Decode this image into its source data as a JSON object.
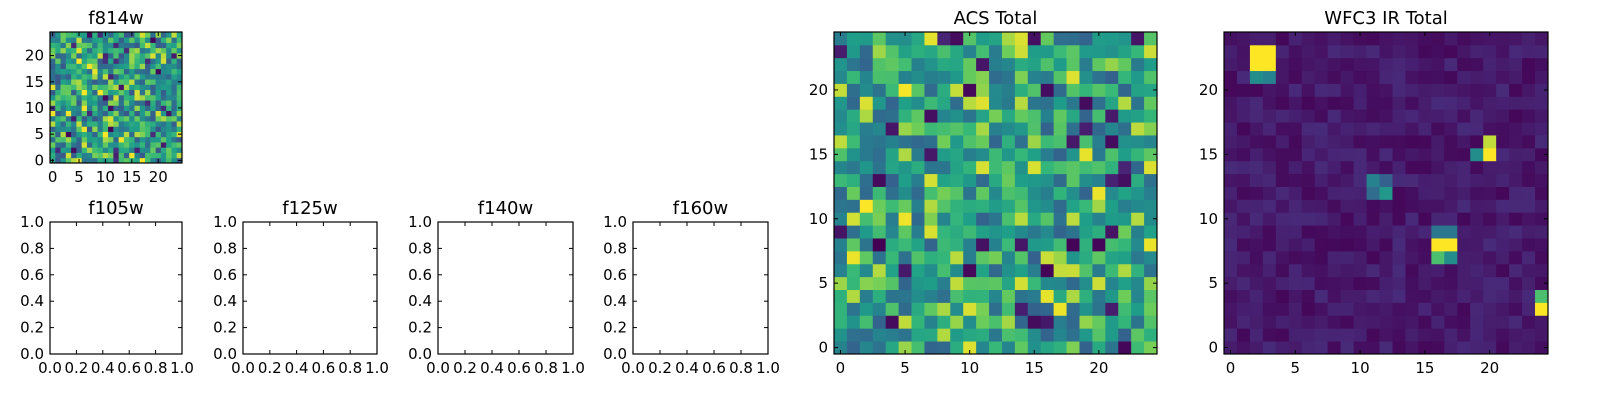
{
  "chart_data": [
    {
      "id": "f814w",
      "type": "heatmap",
      "title": "f814w",
      "rows": 25,
      "cols": 25,
      "xlim": [
        -0.5,
        24.5
      ],
      "ylim": [
        -0.5,
        24.5
      ],
      "xticks": [
        0,
        5,
        10,
        15,
        20
      ],
      "yticks": [
        0,
        5,
        10,
        15,
        20
      ],
      "colormap": "viridis",
      "values_desc": "random noise field, values in [0,1]"
    },
    {
      "id": "f105w",
      "type": "empty",
      "title": "f105w",
      "xlim": [
        0,
        1
      ],
      "ylim": [
        0,
        1
      ],
      "xtick_labels": [
        "0.0",
        "0.2",
        "0.4",
        "0.6",
        "0.8",
        "1.0"
      ],
      "ytick_labels": [
        "0.0",
        "0.2",
        "0.4",
        "0.6",
        "0.8",
        "1.0"
      ]
    },
    {
      "id": "f125w",
      "type": "empty",
      "title": "f125w",
      "xlim": [
        0,
        1
      ],
      "ylim": [
        0,
        1
      ],
      "xtick_labels": [
        "0.0",
        "0.2",
        "0.4",
        "0.6",
        "0.8",
        "1.0"
      ],
      "ytick_labels": [
        "0.0",
        "0.2",
        "0.4",
        "0.6",
        "0.8",
        "1.0"
      ]
    },
    {
      "id": "f140w",
      "type": "empty",
      "title": "f140w",
      "xlim": [
        0,
        1
      ],
      "ylim": [
        0,
        1
      ],
      "xtick_labels": [
        "0.0",
        "0.2",
        "0.4",
        "0.6",
        "0.8",
        "1.0"
      ],
      "ytick_labels": [
        "0.0",
        "0.2",
        "0.4",
        "0.6",
        "0.8",
        "1.0"
      ]
    },
    {
      "id": "f160w",
      "type": "empty",
      "title": "f160w",
      "xlim": [
        0,
        1
      ],
      "ylim": [
        0,
        1
      ],
      "xtick_labels": [
        "0.0",
        "0.2",
        "0.4",
        "0.6",
        "0.8",
        "1.0"
      ],
      "ytick_labels": [
        "0.0",
        "0.2",
        "0.4",
        "0.6",
        "0.8",
        "1.0"
      ]
    },
    {
      "id": "acs_total",
      "type": "heatmap",
      "title": "ACS Total",
      "rows": 25,
      "cols": 25,
      "xlim": [
        -0.5,
        24.5
      ],
      "ylim": [
        -0.5,
        24.5
      ],
      "xticks": [
        0,
        5,
        10,
        15,
        20
      ],
      "yticks": [
        0,
        5,
        10,
        15,
        20
      ],
      "colormap": "viridis",
      "values_desc": "random noise field, mostly mid-high values"
    },
    {
      "id": "wfc3_ir_total",
      "type": "heatmap",
      "title": "WFC3 IR Total",
      "rows": 25,
      "cols": 25,
      "xlim": [
        -0.5,
        24.5
      ],
      "ylim": [
        -0.5,
        24.5
      ],
      "xticks": [
        0,
        5,
        10,
        15,
        20
      ],
      "yticks": [
        0,
        5,
        10,
        15,
        20
      ],
      "colormap": "viridis",
      "values_desc": "low background with a few bright sources",
      "sources": [
        {
          "x": 2,
          "y": 23,
          "value": 1.0
        },
        {
          "x": 3,
          "y": 23,
          "value": 1.0
        },
        {
          "x": 2,
          "y": 22,
          "value": 1.0
        },
        {
          "x": 3,
          "y": 22,
          "value": 1.0
        },
        {
          "x": 2,
          "y": 21,
          "value": 0.55
        },
        {
          "x": 3,
          "y": 21,
          "value": 0.5
        },
        {
          "x": 20,
          "y": 16,
          "value": 0.95
        },
        {
          "x": 20,
          "y": 15,
          "value": 1.0
        },
        {
          "x": 19,
          "y": 15,
          "value": 0.55
        },
        {
          "x": 11,
          "y": 13,
          "value": 0.5
        },
        {
          "x": 12,
          "y": 13,
          "value": 0.35
        },
        {
          "x": 11,
          "y": 12,
          "value": 0.4
        },
        {
          "x": 12,
          "y": 12,
          "value": 0.6
        },
        {
          "x": 16,
          "y": 9,
          "value": 0.45
        },
        {
          "x": 17,
          "y": 9,
          "value": 0.45
        },
        {
          "x": 16,
          "y": 8,
          "value": 1.0
        },
        {
          "x": 17,
          "y": 8,
          "value": 1.0
        },
        {
          "x": 16,
          "y": 7,
          "value": 0.8
        },
        {
          "x": 17,
          "y": 7,
          "value": 0.55
        },
        {
          "x": 24,
          "y": 4,
          "value": 0.8
        },
        {
          "x": 24,
          "y": 3,
          "value": 1.0
        }
      ]
    }
  ]
}
